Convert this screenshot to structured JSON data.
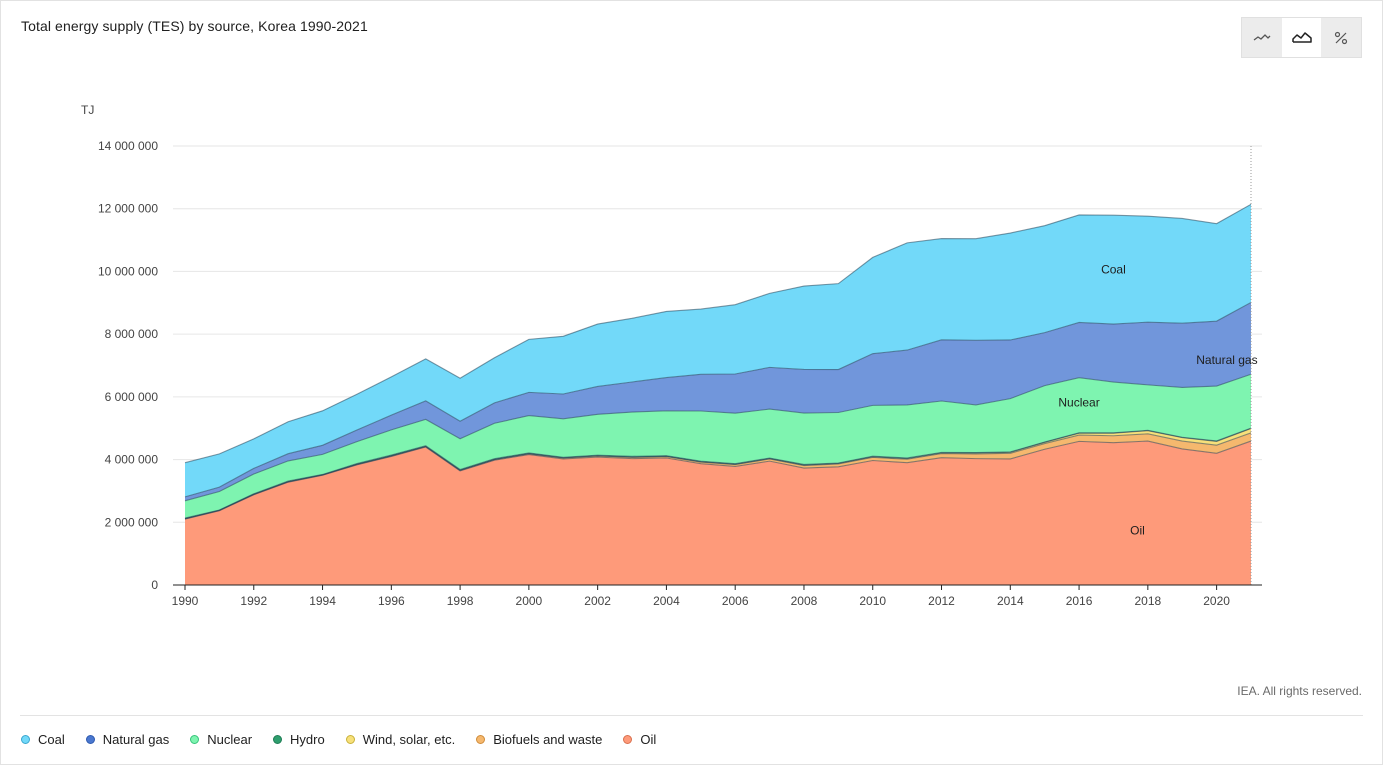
{
  "title": "Total energy supply (TES) by source, Korea 1990-2021",
  "toolbar": {
    "buttons": [
      {
        "icon": "line-chart-icon",
        "active": false
      },
      {
        "icon": "area-chart-icon",
        "active": true
      },
      {
        "icon": "percent-icon",
        "active": false
      }
    ]
  },
  "copyright": "IEA. All rights reserved.",
  "chart_data": {
    "type": "area",
    "stacked": true,
    "unit_label": "TJ",
    "ylim": [
      0,
      14000000
    ],
    "y_ticks": [
      0,
      2000000,
      4000000,
      6000000,
      8000000,
      10000000,
      12000000,
      14000000
    ],
    "y_tick_labels": [
      "0",
      "2 000 000",
      "4 000 000",
      "6 000 000",
      "8 000 000",
      "10 000 000",
      "12 000 000",
      "14 000 000"
    ],
    "x_ticks": [
      1990,
      1992,
      1994,
      1996,
      1998,
      2000,
      2002,
      2004,
      2006,
      2008,
      2010,
      2012,
      2014,
      2016,
      2018,
      2020
    ],
    "x": [
      1990,
      1991,
      1992,
      1993,
      1994,
      1995,
      1996,
      1997,
      1998,
      1999,
      2000,
      2001,
      2002,
      2003,
      2004,
      2005,
      2006,
      2007,
      2008,
      2009,
      2010,
      2011,
      2012,
      2013,
      2014,
      2015,
      2016,
      2017,
      2018,
      2019,
      2020,
      2021
    ],
    "grid": true,
    "series": [
      {
        "name": "Oil",
        "color": "#fe9a7a",
        "label": "Oil",
        "values": [
          2100000,
          2370000,
          2880000,
          3280000,
          3500000,
          3830000,
          4100000,
          4400000,
          3640000,
          3980000,
          4160000,
          4020000,
          4080000,
          4030000,
          4050000,
          3870000,
          3780000,
          3950000,
          3730000,
          3770000,
          3970000,
          3900000,
          4060000,
          4030000,
          4020000,
          4330000,
          4580000,
          4540000,
          4590000,
          4340000,
          4200000,
          4590000
        ]
      },
      {
        "name": "Biofuels and waste",
        "color": "#f5b86e",
        "values": [
          10000,
          10000,
          10000,
          10000,
          10000,
          15000,
          15000,
          15000,
          15000,
          20000,
          25000,
          30000,
          35000,
          40000,
          45000,
          50000,
          60000,
          70000,
          80000,
          90000,
          100000,
          110000,
          130000,
          150000,
          180000,
          180000,
          200000,
          220000,
          230000,
          250000,
          260000,
          260000
        ]
      },
      {
        "name": "Wind, solar, etc.",
        "color": "#f7e07a",
        "values": [
          2000,
          2000,
          2000,
          3000,
          3000,
          3000,
          4000,
          4000,
          4000,
          4000,
          5000,
          5000,
          6000,
          7000,
          8000,
          9000,
          10000,
          12000,
          14000,
          16000,
          18000,
          20000,
          22000,
          26000,
          30000,
          40000,
          60000,
          80000,
          100000,
          110000,
          120000,
          140000
        ]
      },
      {
        "name": "Hydro",
        "color": "#2e9e6e",
        "values": [
          23000,
          10000,
          17000,
          24000,
          12000,
          25000,
          27000,
          23000,
          24000,
          24000,
          23000,
          16000,
          21000,
          27000,
          22000,
          20000,
          19000,
          18000,
          20000,
          15000,
          20000,
          21000,
          16000,
          18000,
          14000,
          9000,
          12000,
          13000,
          12000,
          9000,
          14000,
          11000
        ]
      },
      {
        "name": "Nuclear",
        "color": "#7ef4b0",
        "label": "Nuclear",
        "values": [
          550000,
          590000,
          630000,
          640000,
          640000,
          700000,
          800000,
          840000,
          980000,
          1130000,
          1190000,
          1230000,
          1300000,
          1410000,
          1430000,
          1600000,
          1610000,
          1560000,
          1640000,
          1610000,
          1620000,
          1690000,
          1640000,
          1520000,
          1700000,
          1800000,
          1760000,
          1620000,
          1450000,
          1590000,
          1750000,
          1720000
        ]
      },
      {
        "name": "Natural gas",
        "color": "#7196db",
        "label": "Natural gas",
        "values": [
          125000,
          140000,
          180000,
          230000,
          290000,
          370000,
          470000,
          590000,
          560000,
          650000,
          740000,
          790000,
          890000,
          960000,
          1060000,
          1170000,
          1250000,
          1330000,
          1390000,
          1370000,
          1650000,
          1750000,
          1950000,
          2060000,
          1870000,
          1690000,
          1760000,
          1850000,
          2000000,
          2050000,
          2070000,
          2290000
        ]
      },
      {
        "name": "Coal",
        "color": "#72d9f9",
        "label": "Coal",
        "values": [
          1090000,
          1060000,
          940000,
          1020000,
          1100000,
          1140000,
          1220000,
          1340000,
          1370000,
          1440000,
          1690000,
          1840000,
          1990000,
          2030000,
          2110000,
          2080000,
          2210000,
          2360000,
          2660000,
          2740000,
          3070000,
          3420000,
          3230000,
          3240000,
          3410000,
          3410000,
          3430000,
          3470000,
          3380000,
          3340000,
          3110000,
          3130000
        ]
      }
    ]
  },
  "legend": [
    {
      "label": "Coal",
      "color": "#72d9f9",
      "border": "#3aa6cf"
    },
    {
      "label": "Natural gas",
      "color": "#4a77cf",
      "border": "#2f5bb0"
    },
    {
      "label": "Nuclear",
      "color": "#7ef4b0",
      "border": "#36c47a"
    },
    {
      "label": "Hydro",
      "color": "#2e9e6e",
      "border": "#1f7d55"
    },
    {
      "label": "Wind, solar, etc.",
      "color": "#f7e07a",
      "border": "#c9b23a"
    },
    {
      "label": "Biofuels and waste",
      "color": "#f5b86e",
      "border": "#d08c3a"
    },
    {
      "label": "Oil",
      "color": "#fe9a7a",
      "border": "#d9704e"
    }
  ]
}
